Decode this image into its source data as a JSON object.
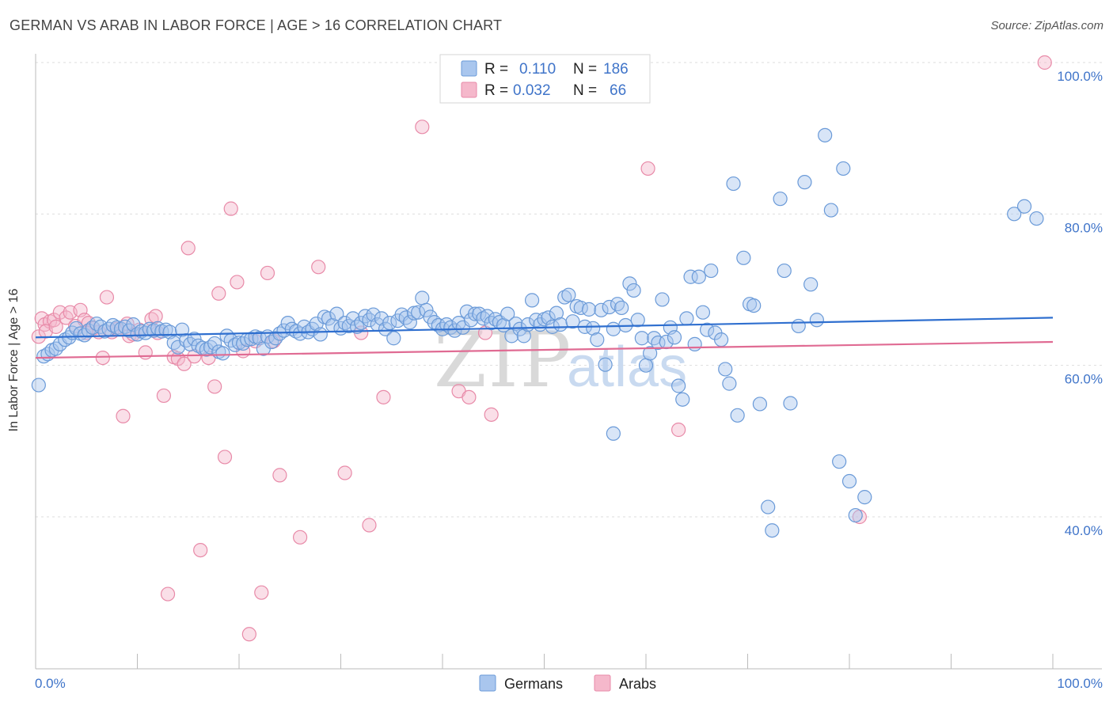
{
  "title": "GERMAN VS ARAB IN LABOR FORCE | AGE > 16 CORRELATION CHART",
  "source": "Source: ZipAtlas.com",
  "watermark": {
    "zip": "ZIP",
    "atlas": "atlas"
  },
  "legend": {
    "r_label": "R =",
    "n_label": "N =",
    "rows": [
      {
        "r": "0.110",
        "n": "186"
      },
      {
        "r": "0.032",
        "n": "66"
      }
    ]
  },
  "colors": {
    "germans_fill": "#a9c6ee",
    "germans_stroke": "#6a9ad8",
    "germans_line": "#2f6fcf",
    "arabs_fill": "#f5b8cb",
    "arabs_stroke": "#e88aa8",
    "arabs_line": "#e06b93"
  },
  "chart_data": {
    "type": "scatter",
    "title": "GERMAN VS ARAB IN LABOR FORCE | AGE > 16 CORRELATION CHART",
    "xlabel": "",
    "ylabel": "In Labor Force | Age > 16",
    "xlim": [
      0,
      100
    ],
    "ylim": [
      20,
      102
    ],
    "x_tick_labels": [
      "0.0%",
      "100.0%"
    ],
    "y_ticks": [
      40,
      60,
      80,
      100
    ],
    "y_tick_labels": [
      "40.0%",
      "60.0%",
      "80.0%",
      "100.0%"
    ],
    "grid": "horizontal dashed",
    "legend_placement": "top-center",
    "series": [
      {
        "name": "Germans",
        "r": 0.11,
        "n": 186,
        "trend": {
          "x": [
            0,
            100
          ],
          "y": [
            63.7,
            66.3
          ]
        },
        "points": [
          [
            0.3,
            57.4
          ],
          [
            0.8,
            61.2
          ],
          [
            1.2,
            61.5
          ],
          [
            1.6,
            62.0
          ],
          [
            2.0,
            62.2
          ],
          [
            2.4,
            62.8
          ],
          [
            2.9,
            63.4
          ],
          [
            3.3,
            63.7
          ],
          [
            3.6,
            64.3
          ],
          [
            4.0,
            64.9
          ],
          [
            4.4,
            64.2
          ],
          [
            4.8,
            64.0
          ],
          [
            5.2,
            64.6
          ],
          [
            5.6,
            65.0
          ],
          [
            6.0,
            65.5
          ],
          [
            6.4,
            65.1
          ],
          [
            6.8,
            64.5
          ],
          [
            7.2,
            64.8
          ],
          [
            7.6,
            65.3
          ],
          [
            8.0,
            65.0
          ],
          [
            8.4,
            64.8
          ],
          [
            8.8,
            65.1
          ],
          [
            9.2,
            64.6
          ],
          [
            9.6,
            65.4
          ],
          [
            10.0,
            64.1
          ],
          [
            10.4,
            64.5
          ],
          [
            10.8,
            64.3
          ],
          [
            11.2,
            64.8
          ],
          [
            11.6,
            64.6
          ],
          [
            12.0,
            64.9
          ],
          [
            12.4,
            64.5
          ],
          [
            12.8,
            64.7
          ],
          [
            13.2,
            64.4
          ],
          [
            13.6,
            63.0
          ],
          [
            14.0,
            62.4
          ],
          [
            14.4,
            64.7
          ],
          [
            14.8,
            63.3
          ],
          [
            15.2,
            62.8
          ],
          [
            15.6,
            63.5
          ],
          [
            16.0,
            62.6
          ],
          [
            16.4,
            62.3
          ],
          [
            16.8,
            62.1
          ],
          [
            17.2,
            62.4
          ],
          [
            17.6,
            62.9
          ],
          [
            18.0,
            61.8
          ],
          [
            18.4,
            61.6
          ],
          [
            18.8,
            63.9
          ],
          [
            19.2,
            63.3
          ],
          [
            19.6,
            62.7
          ],
          [
            20.0,
            63.0
          ],
          [
            20.4,
            62.9
          ],
          [
            20.8,
            63.4
          ],
          [
            21.2,
            63.5
          ],
          [
            21.6,
            63.8
          ],
          [
            22.0,
            63.6
          ],
          [
            22.4,
            62.2
          ],
          [
            22.8,
            63.8
          ],
          [
            23.2,
            63.1
          ],
          [
            23.6,
            63.6
          ],
          [
            24.0,
            64.2
          ],
          [
            24.4,
            64.6
          ],
          [
            24.8,
            65.6
          ],
          [
            25.2,
            64.8
          ],
          [
            25.6,
            64.5
          ],
          [
            26.0,
            64.2
          ],
          [
            26.4,
            65.1
          ],
          [
            26.8,
            64.4
          ],
          [
            27.2,
            64.8
          ],
          [
            27.6,
            65.5
          ],
          [
            28.0,
            64.1
          ],
          [
            28.4,
            66.4
          ],
          [
            28.8,
            66.2
          ],
          [
            29.2,
            65.3
          ],
          [
            29.6,
            66.8
          ],
          [
            30.0,
            64.9
          ],
          [
            30.4,
            65.6
          ],
          [
            30.8,
            65.2
          ],
          [
            31.2,
            66.2
          ],
          [
            31.6,
            65.1
          ],
          [
            32.0,
            65.6
          ],
          [
            32.4,
            66.5
          ],
          [
            32.8,
            66.0
          ],
          [
            33.2,
            66.7
          ],
          [
            33.6,
            65.4
          ],
          [
            34.0,
            66.2
          ],
          [
            34.4,
            64.8
          ],
          [
            34.8,
            65.6
          ],
          [
            35.2,
            63.6
          ],
          [
            35.6,
            65.9
          ],
          [
            36.0,
            66.7
          ],
          [
            36.4,
            66.3
          ],
          [
            36.8,
            65.7
          ],
          [
            37.2,
            66.9
          ],
          [
            37.6,
            67.0
          ],
          [
            38.0,
            68.9
          ],
          [
            38.4,
            67.3
          ],
          [
            38.8,
            66.4
          ],
          [
            39.2,
            65.7
          ],
          [
            39.6,
            65.3
          ],
          [
            40.0,
            64.8
          ],
          [
            40.4,
            65.4
          ],
          [
            40.8,
            65.0
          ],
          [
            41.2,
            64.6
          ],
          [
            41.6,
            65.6
          ],
          [
            42.0,
            65.0
          ],
          [
            42.4,
            67.1
          ],
          [
            42.8,
            66.0
          ],
          [
            43.2,
            66.8
          ],
          [
            43.6,
            66.8
          ],
          [
            44.0,
            66.2
          ],
          [
            44.4,
            66.5
          ],
          [
            44.8,
            65.6
          ],
          [
            45.2,
            66.1
          ],
          [
            45.6,
            65.7
          ],
          [
            46.0,
            65.3
          ],
          [
            46.4,
            66.8
          ],
          [
            46.8,
            63.9
          ],
          [
            47.2,
            65.5
          ],
          [
            47.6,
            64.8
          ],
          [
            48.0,
            63.9
          ],
          [
            48.4,
            65.4
          ],
          [
            48.8,
            68.6
          ],
          [
            49.2,
            66.0
          ],
          [
            49.6,
            65.4
          ],
          [
            50.0,
            66.1
          ],
          [
            50.4,
            66.3
          ],
          [
            50.8,
            65.1
          ],
          [
            51.2,
            66.9
          ],
          [
            51.6,
            65.4
          ],
          [
            52.0,
            69.0
          ],
          [
            52.4,
            69.3
          ],
          [
            52.8,
            65.8
          ],
          [
            53.2,
            67.8
          ],
          [
            53.6,
            67.6
          ],
          [
            54.0,
            65.1
          ],
          [
            54.4,
            67.4
          ],
          [
            54.8,
            64.9
          ],
          [
            55.2,
            63.4
          ],
          [
            55.6,
            67.3
          ],
          [
            56.0,
            60.1
          ],
          [
            56.4,
            67.7
          ],
          [
            56.8,
            64.8
          ],
          [
            57.2,
            68.1
          ],
          [
            57.6,
            67.6
          ],
          [
            58.0,
            65.3
          ],
          [
            58.4,
            70.8
          ],
          [
            58.8,
            69.9
          ],
          [
            59.2,
            66.0
          ],
          [
            59.6,
            63.6
          ],
          [
            60.0,
            60.0
          ],
          [
            60.4,
            61.6
          ],
          [
            60.8,
            63.6
          ],
          [
            61.2,
            63.0
          ],
          [
            61.6,
            68.7
          ],
          [
            62.0,
            63.1
          ],
          [
            62.4,
            65.0
          ],
          [
            62.8,
            63.7
          ],
          [
            63.2,
            57.3
          ],
          [
            63.6,
            55.5
          ],
          [
            64.0,
            66.2
          ],
          [
            64.4,
            71.7
          ],
          [
            64.8,
            62.8
          ],
          [
            65.2,
            71.7
          ],
          [
            65.6,
            67.0
          ],
          [
            66.0,
            64.7
          ],
          [
            66.4,
            72.5
          ],
          [
            66.8,
            64.3
          ],
          [
            67.4,
            63.4
          ],
          [
            67.8,
            59.5
          ],
          [
            68.2,
            57.6
          ],
          [
            68.6,
            84.0
          ],
          [
            69.0,
            53.4
          ],
          [
            69.6,
            74.2
          ],
          [
            70.2,
            68.1
          ],
          [
            70.6,
            67.9
          ],
          [
            71.2,
            54.9
          ],
          [
            72.0,
            41.3
          ],
          [
            72.4,
            38.2
          ],
          [
            73.2,
            82.0
          ],
          [
            73.6,
            72.5
          ],
          [
            74.2,
            55.0
          ],
          [
            75.0,
            65.2
          ],
          [
            75.6,
            84.2
          ],
          [
            76.2,
            70.7
          ],
          [
            76.8,
            66.0
          ],
          [
            77.6,
            90.4
          ],
          [
            78.2,
            80.5
          ],
          [
            79.0,
            47.3
          ],
          [
            79.4,
            86.0
          ],
          [
            80.0,
            44.7
          ],
          [
            80.6,
            40.2
          ],
          [
            81.5,
            42.6
          ],
          [
            96.2,
            80.0
          ],
          [
            97.2,
            81.0
          ],
          [
            56.8,
            51.0
          ],
          [
            98.4,
            79.4
          ]
        ]
      },
      {
        "name": "Arabs",
        "r": 0.032,
        "n": 66,
        "trend": {
          "x": [
            0,
            100
          ],
          "y": [
            61.0,
            63.1
          ]
        },
        "points": [
          [
            0.3,
            63.8
          ],
          [
            0.6,
            66.2
          ],
          [
            0.9,
            65.4
          ],
          [
            1.4,
            65.8
          ],
          [
            1.8,
            66.0
          ],
          [
            2.4,
            67.0
          ],
          [
            3.0,
            66.3
          ],
          [
            3.4,
            67.0
          ],
          [
            3.9,
            65.2
          ],
          [
            4.4,
            67.3
          ],
          [
            4.8,
            66.0
          ],
          [
            5.2,
            65.6
          ],
          [
            5.7,
            64.9
          ],
          [
            6.2,
            64.4
          ],
          [
            6.6,
            61.0
          ],
          [
            7.0,
            69.0
          ],
          [
            7.5,
            64.4
          ],
          [
            8.0,
            64.8
          ],
          [
            8.6,
            53.3
          ],
          [
            9.2,
            63.9
          ],
          [
            9.6,
            64.1
          ],
          [
            10.2,
            64.7
          ],
          [
            10.8,
            61.7
          ],
          [
            11.4,
            66.1
          ],
          [
            12.0,
            64.3
          ],
          [
            12.6,
            56.0
          ],
          [
            13.0,
            29.8
          ],
          [
            13.6,
            61.1
          ],
          [
            14.0,
            60.9
          ],
          [
            14.6,
            60.2
          ],
          [
            15.0,
            75.5
          ],
          [
            15.6,
            61.2
          ],
          [
            16.2,
            35.6
          ],
          [
            17.0,
            61.0
          ],
          [
            17.6,
            57.2
          ],
          [
            18.0,
            69.5
          ],
          [
            18.6,
            47.9
          ],
          [
            19.2,
            80.7
          ],
          [
            19.8,
            71.0
          ],
          [
            20.4,
            61.9
          ],
          [
            21.0,
            24.5
          ],
          [
            21.6,
            63.2
          ],
          [
            22.2,
            30.0
          ],
          [
            22.8,
            72.2
          ],
          [
            23.4,
            63.2
          ],
          [
            24.0,
            45.5
          ],
          [
            26.0,
            37.3
          ],
          [
            27.8,
            73.0
          ],
          [
            30.4,
            45.8
          ],
          [
            32.0,
            64.3
          ],
          [
            32.8,
            38.9
          ],
          [
            34.2,
            55.8
          ],
          [
            38.0,
            91.5
          ],
          [
            41.6,
            56.6
          ],
          [
            42.6,
            55.8
          ],
          [
            44.2,
            64.3
          ],
          [
            44.8,
            53.5
          ],
          [
            60.2,
            86.0
          ],
          [
            63.2,
            51.5
          ],
          [
            81.0,
            40.0
          ],
          [
            99.2,
            100.0
          ],
          [
            1.0,
            64.5
          ],
          [
            2.0,
            65.1
          ],
          [
            5.0,
            64.3
          ],
          [
            9.0,
            65.5
          ],
          [
            11.8,
            66.5
          ]
        ]
      }
    ]
  }
}
